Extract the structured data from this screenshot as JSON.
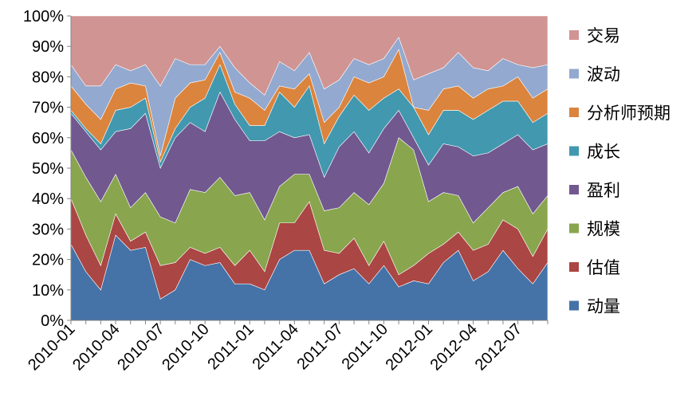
{
  "chart_data": {
    "type": "area",
    "stacked": true,
    "percent": true,
    "title": "",
    "xlabel": "",
    "ylabel": "",
    "ylim": [
      0,
      100
    ],
    "y_ticks": [
      "0%",
      "10%",
      "20%",
      "30%",
      "40%",
      "50%",
      "60%",
      "70%",
      "80%",
      "90%",
      "100%"
    ],
    "x": [
      "2010-01",
      "2010-02",
      "2010-03",
      "2010-04",
      "2010-05",
      "2010-06",
      "2010-07",
      "2010-08",
      "2010-09",
      "2010-10",
      "2010-11",
      "2010-12",
      "2011-01",
      "2011-02",
      "2011-03",
      "2011-04",
      "2011-05",
      "2011-06",
      "2011-07",
      "2011-08",
      "2011-09",
      "2011-10",
      "2011-11",
      "2011-12",
      "2012-01",
      "2012-02",
      "2012-03",
      "2012-04",
      "2012-05",
      "2012-06",
      "2012-07",
      "2012-08",
      "2012-09"
    ],
    "x_tick_labels": [
      "2010-01",
      "2010-04",
      "2010-07",
      "2010-10",
      "2011-01",
      "2011-04",
      "2011-07",
      "2011-10",
      "2012-01",
      "2012-04",
      "2012-07"
    ],
    "grid": false,
    "legend_position": "right",
    "series": [
      {
        "name": "动量",
        "color": "#4572A7",
        "values": [
          25,
          16,
          10,
          28,
          23,
          24,
          7,
          10,
          20,
          18,
          19,
          12,
          12,
          10,
          20,
          23,
          23,
          12,
          15,
          17,
          12,
          18,
          11,
          13,
          12,
          19,
          23,
          13,
          16,
          23,
          17,
          12,
          19
        ]
      },
      {
        "name": "估值",
        "color": "#AA4643",
        "values": [
          15,
          12,
          8,
          7,
          3,
          5,
          11,
          9,
          4,
          4,
          5,
          6,
          11,
          6,
          12,
          9,
          16,
          11,
          7,
          10,
          6,
          8,
          4,
          5,
          10,
          6,
          6,
          10,
          9,
          10,
          13,
          9,
          11
        ]
      },
      {
        "name": "规模",
        "color": "#89A54E",
        "values": [
          16,
          19,
          21,
          13,
          11,
          13,
          16,
          13,
          19,
          20,
          23,
          23,
          19,
          17,
          12,
          16,
          9,
          13,
          15,
          15,
          20,
          19,
          45,
          38,
          17,
          17,
          12,
          9,
          12,
          9,
          14,
          14,
          11
        ]
      },
      {
        "name": "盈利",
        "color": "#71588F",
        "values": [
          12,
          15,
          17,
          14,
          26,
          26,
          16,
          28,
          22,
          20,
          28,
          25,
          17,
          26,
          18,
          12,
          13,
          11,
          20,
          20,
          17,
          18,
          9,
          4,
          12,
          16,
          16,
          22,
          18,
          16,
          17,
          21,
          17
        ]
      },
      {
        "name": "成长",
        "color": "#4198AF",
        "values": [
          1,
          1,
          2,
          7,
          7,
          5,
          2,
          3,
          5,
          11,
          9,
          5,
          5,
          5,
          13,
          10,
          16,
          11,
          10,
          12,
          14,
          10,
          7,
          10,
          10,
          11,
          12,
          12,
          14,
          14,
          11,
          9,
          10
        ]
      },
      {
        "name": "分析师预期",
        "color": "#DB843D",
        "values": [
          8,
          8,
          8,
          7,
          8,
          4,
          2,
          10,
          8,
          6,
          4,
          4,
          9,
          5,
          2,
          6,
          4,
          7,
          3,
          6,
          9,
          7,
          13,
          0,
          8,
          7,
          8,
          7,
          7,
          5,
          8,
          8,
          8
        ]
      },
      {
        "name": "波动",
        "color": "#93A9CF",
        "values": [
          7,
          6,
          11,
          8,
          4,
          7,
          23,
          13,
          6,
          5,
          2,
          8,
          5,
          5,
          8,
          6,
          7,
          11,
          9,
          6,
          6,
          6,
          4,
          9,
          12,
          7,
          11,
          10,
          6,
          9,
          4,
          10,
          8
        ]
      },
      {
        "name": "交易",
        "color": "#D09493",
        "values": [
          16,
          23,
          23,
          16,
          18,
          16,
          23,
          14,
          16,
          16,
          10,
          17,
          22,
          26,
          15,
          18,
          12,
          24,
          21,
          14,
          16,
          14,
          7,
          21,
          19,
          17,
          12,
          17,
          18,
          14,
          16,
          17,
          16
        ]
      }
    ]
  }
}
